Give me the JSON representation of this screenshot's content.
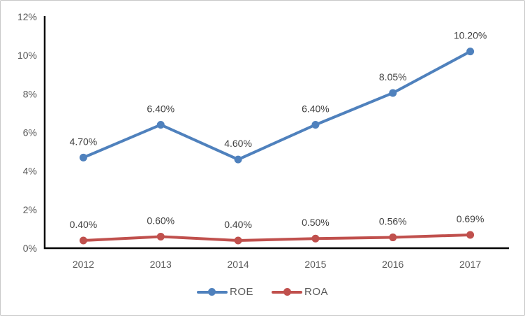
{
  "chart_data": {
    "type": "line",
    "title": "",
    "xlabel": "",
    "ylabel": "",
    "categories": [
      "2012",
      "2013",
      "2014",
      "2015",
      "2016",
      "2017"
    ],
    "series": [
      {
        "name": "ROE",
        "color": "#4F81BD",
        "values": [
          4.7,
          6.4,
          4.6,
          6.4,
          8.05,
          10.2
        ],
        "labels": [
          "4.70%",
          "6.40%",
          "4.60%",
          "6.40%",
          "8.05%",
          "10.20%"
        ]
      },
      {
        "name": "ROA",
        "color": "#C0504D",
        "values": [
          0.4,
          0.6,
          0.4,
          0.5,
          0.56,
          0.69
        ],
        "labels": [
          "0.40%",
          "0.60%",
          "0.40%",
          "0.50%",
          "0.56%",
          "0.69%"
        ]
      }
    ],
    "ylim": [
      0,
      12
    ],
    "y_axis": {
      "values": [
        0,
        2,
        4,
        6,
        8,
        10,
        12
      ],
      "labels": [
        "0%",
        "2%",
        "4%",
        "6%",
        "8%",
        "10%",
        "12%"
      ]
    },
    "grid": false,
    "legend_position": "bottom",
    "styles": {
      "axis_line_color": "#000000",
      "tick_label_color": "#595959",
      "data_label_color": "#404040",
      "background": "#FFFFFF",
      "frame_border_color": "#C8C8C8"
    }
  }
}
